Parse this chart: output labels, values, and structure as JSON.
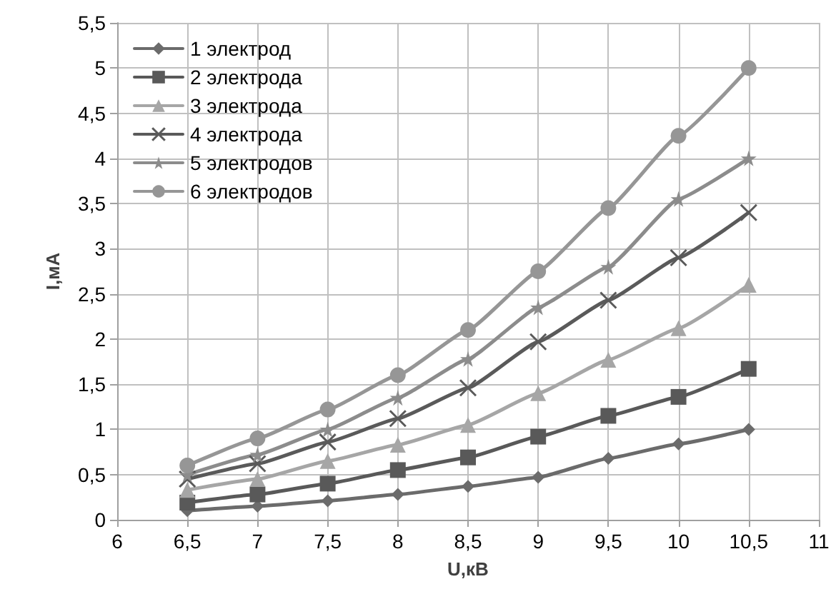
{
  "chart_data": {
    "type": "line",
    "xlabel": "U,кВ",
    "ylabel": "I,мА",
    "x": [
      6.5,
      7,
      7.5,
      8,
      8.5,
      9,
      9.5,
      10,
      10.5
    ],
    "series": [
      {
        "name": "1 электрод",
        "color": "#6b6b6b",
        "marker": "diamond",
        "values": [
          0.1,
          0.15,
          0.21,
          0.28,
          0.37,
          0.47,
          0.68,
          0.84,
          1.0
        ]
      },
      {
        "name": "2 электрода",
        "color": "#595959",
        "marker": "square",
        "values": [
          0.19,
          0.28,
          0.4,
          0.55,
          0.69,
          0.92,
          1.15,
          1.36,
          1.67
        ]
      },
      {
        "name": "3 электрода",
        "color": "#a6a6a6",
        "marker": "triangle",
        "values": [
          0.33,
          0.45,
          0.65,
          0.83,
          1.05,
          1.4,
          1.77,
          2.12,
          2.6
        ]
      },
      {
        "name": "4 электрода",
        "color": "#5a5a5a",
        "marker": "cross",
        "values": [
          0.45,
          0.62,
          0.86,
          1.12,
          1.46,
          1.97,
          2.43,
          2.9,
          3.4
        ]
      },
      {
        "name": "5 электродов",
        "color": "#8c8c8c",
        "marker": "star",
        "values": [
          0.5,
          0.72,
          1.0,
          1.35,
          1.78,
          2.35,
          2.8,
          3.55,
          4.0
        ]
      },
      {
        "name": "6 электродов",
        "color": "#969696",
        "marker": "circle",
        "values": [
          0.6,
          0.9,
          1.22,
          1.6,
          2.1,
          2.75,
          3.45,
          4.25,
          5.0
        ]
      }
    ],
    "xlim": [
      6,
      11
    ],
    "xticks": [
      6,
      {
        "value": 6.5,
        "label": "6,5"
      },
      7,
      {
        "value": 7.5,
        "label": "7,5"
      },
      8,
      {
        "value": 8.5,
        "label": "8,5"
      },
      9,
      {
        "value": 9.5,
        "label": "9,5"
      },
      10,
      {
        "value": 10.5,
        "label": "10,5"
      },
      11
    ],
    "ylim": [
      0,
      5.5
    ],
    "yticks": [
      0,
      {
        "value": 0.5,
        "label": "0,5"
      },
      1,
      {
        "value": 1.5,
        "label": "1,5"
      },
      2,
      {
        "value": 2.5,
        "label": "2,5"
      },
      3,
      {
        "value": 3.5,
        "label": "3,5"
      },
      4,
      {
        "value": 4.5,
        "label": "4,5"
      },
      5,
      {
        "value": 5.5,
        "label": "5,5"
      }
    ],
    "grid": true,
    "legend": "top left",
    "line_style": "solid"
  }
}
